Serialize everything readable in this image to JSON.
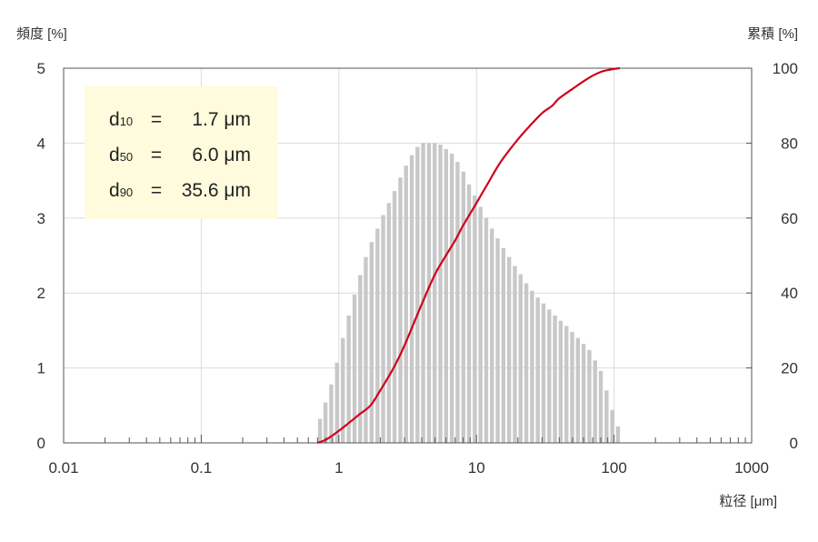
{
  "chart_data": {
    "type": "bar",
    "ylabel": "頻度 [%]",
    "y2label": "累積 [%]",
    "xlabel": "粒径 [μm]",
    "xscale": "log",
    "xlim": [
      0.01,
      1000
    ],
    "ylim": [
      0,
      5
    ],
    "y2lim": [
      0,
      100
    ],
    "x_ticks": [
      "0.01",
      "0.1",
      "1",
      "10",
      "100",
      "1000"
    ],
    "y_ticks": [
      "0",
      "1",
      "2",
      "3",
      "4",
      "5"
    ],
    "y2_ticks": [
      "0",
      "20",
      "40",
      "60",
      "80",
      "100"
    ],
    "grid": true,
    "bar_color": "#c8c8c8",
    "curve_color": "#d0021b",
    "annotation": {
      "lines": [
        {
          "sym": "d",
          "sub": "10",
          "eq": "=",
          "val": "1.7 μm"
        },
        {
          "sym": "d",
          "sub": "50",
          "eq": "=",
          "val": "6.0 μm"
        },
        {
          "sym": "d",
          "sub": "90",
          "eq": "=",
          "val": "35.6 μm"
        }
      ],
      "bg_color": "#fffbdc"
    },
    "bars": {
      "x": [
        0.73,
        0.8,
        0.88,
        0.97,
        1.07,
        1.18,
        1.3,
        1.43,
        1.57,
        1.73,
        1.91,
        2.1,
        2.31,
        2.54,
        2.8,
        3.08,
        3.39,
        3.73,
        4.1,
        4.52,
        4.97,
        5.47,
        6.02,
        6.63,
        7.29,
        8.03,
        8.83,
        9.72,
        10.7,
        11.78,
        12.96,
        14.27,
        15.7,
        17.28,
        19.02,
        20.93,
        23.04,
        25.36,
        27.91,
        30.72,
        33.81,
        37.21,
        40.95,
        45.08,
        49.61,
        54.61,
        60.1,
        66.15,
        72.81,
        80.13,
        88.2,
        97.08,
        106.8
      ],
      "values": [
        0.32,
        0.54,
        0.78,
        1.07,
        1.4,
        1.7,
        1.98,
        2.24,
        2.48,
        2.68,
        2.86,
        3.04,
        3.2,
        3.36,
        3.54,
        3.7,
        3.84,
        3.95,
        4.0,
        4.0,
        4.0,
        3.98,
        3.92,
        3.86,
        3.75,
        3.62,
        3.45,
        3.3,
        3.15,
        3.0,
        2.86,
        2.73,
        2.6,
        2.48,
        2.36,
        2.25,
        2.13,
        2.03,
        1.94,
        1.86,
        1.78,
        1.7,
        1.63,
        1.56,
        1.48,
        1.4,
        1.32,
        1.24,
        1.1,
        0.96,
        0.7,
        0.44,
        0.22
      ]
    },
    "cumulative": {
      "x": [
        0.7,
        0.8,
        0.9,
        1.0,
        1.2,
        1.4,
        1.7,
        2.0,
        2.5,
        3.0,
        4.0,
        5.0,
        6.0,
        7.0,
        8.0,
        10.0,
        12.0,
        15.0,
        20.0,
        25.0,
        30.0,
        35.6,
        40.0,
        50.0,
        60.0,
        70.0,
        80.0,
        90.0,
        100.0,
        110.0
      ],
      "values": [
        0,
        0.8,
        2.0,
        3.2,
        5.5,
        7.5,
        10,
        14,
        20,
        26,
        37,
        45,
        50,
        54,
        58,
        64,
        69,
        75,
        81,
        85,
        88,
        90,
        92,
        94.5,
        96.5,
        98,
        99,
        99.5,
        99.8,
        100
      ]
    }
  }
}
